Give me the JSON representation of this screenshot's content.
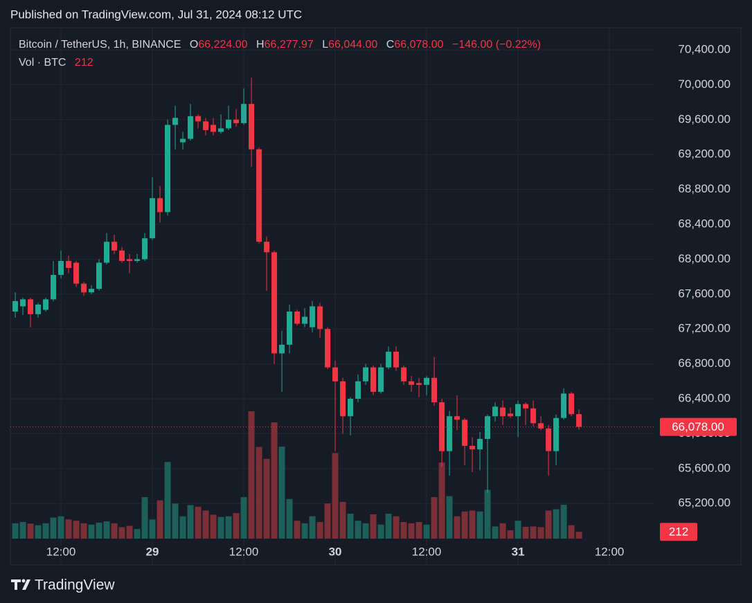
{
  "header": {
    "published": "Published on TradingView.com, Jul 31, 2024 08:12 UTC"
  },
  "footer": {
    "brand": "TradingView"
  },
  "chart_data": {
    "type": "candlestick",
    "symbol": "Bitcoin / TetherUS, 1h, BINANCE",
    "legend": [
      {
        "key": "O",
        "value": "66,224.00"
      },
      {
        "key": "H",
        "value": "66,277.97"
      },
      {
        "key": "L",
        "value": "66,044.00"
      },
      {
        "key": "C",
        "value": "66,078.00"
      }
    ],
    "change": "−146.00 (−0.22%)",
    "volume_legend": {
      "label": "Vol · BTC",
      "value": "212"
    },
    "up_color": "#22ab94",
    "down_color": "#f23645",
    "volume_up_color": "#1d5f59",
    "volume_down_color": "#7b2f36",
    "grid": true,
    "x": [
      6,
      7,
      8,
      9,
      10,
      11,
      12,
      13,
      14,
      15,
      16,
      17,
      18,
      19,
      20,
      21,
      22,
      23,
      24,
      25,
      26,
      27,
      28,
      29,
      30,
      31,
      32,
      33,
      34,
      35,
      36,
      37,
      38,
      39,
      40,
      41,
      42,
      43,
      44,
      45,
      46,
      47,
      48,
      49,
      50,
      51,
      52,
      53,
      54,
      55,
      56,
      57,
      58,
      59,
      60,
      61,
      62,
      63,
      64,
      65,
      66,
      67,
      68,
      69,
      70,
      71,
      72,
      73,
      74,
      75,
      76,
      77,
      78,
      79,
      80
    ],
    "open": [
      67400,
      67460,
      67540,
      67370,
      67420,
      67540,
      67820,
      67980,
      67960,
      67720,
      67620,
      67660,
      67960,
      68200,
      68100,
      68000,
      67980,
      68000,
      68240,
      68700,
      68540,
      69540,
      69340,
      69380,
      69640,
      69580,
      69540,
      69460,
      69500,
      69600,
      69560,
      69780,
      69260,
      68200,
      68080,
      66920,
      67020,
      67400,
      67260,
      67220,
      67460,
      67200,
      66760,
      66600,
      66200,
      66400,
      66600,
      66760,
      66480,
      66760,
      66940,
      66760,
      66600,
      66580,
      66560,
      66640,
      66360,
      65800,
      66200,
      66160,
      65860,
      65820,
      65940,
      66200,
      66300,
      66230,
      66200,
      66340,
      66290,
      66120,
      66060,
      65800,
      66180,
      66460,
      66224
    ],
    "high": [
      67620,
      67560,
      67560,
      67500,
      67560,
      67980,
      68100,
      68040,
      67980,
      67740,
      67700,
      68000,
      68300,
      68280,
      68140,
      68060,
      68060,
      68300,
      68940,
      68840,
      69600,
      69760,
      69460,
      69780,
      69660,
      69620,
      69620,
      69660,
      69760,
      69720,
      69960,
      70080,
      69280,
      68260,
      68100,
      67180,
      67480,
      67420,
      67440,
      67520,
      67500,
      67220,
      66840,
      66640,
      66420,
      66680,
      66800,
      66780,
      66800,
      67000,
      67000,
      66780,
      66660,
      66640,
      66660,
      66880,
      66400,
      66260,
      66440,
      66180,
      65960,
      66020,
      66220,
      66360,
      66380,
      66300,
      66380,
      66360,
      66380,
      66200,
      66100,
      66220,
      66520,
      66480,
      66277.97
    ],
    "low": [
      67330,
      67360,
      67220,
      67330,
      67400,
      67520,
      67780,
      67840,
      67680,
      67580,
      67600,
      67640,
      67940,
      68060,
      67960,
      67840,
      67960,
      67980,
      68220,
      68420,
      68500,
      69260,
      69260,
      69360,
      69500,
      69420,
      69420,
      69440,
      69480,
      69520,
      69540,
      69060,
      68180,
      67640,
      66800,
      66480,
      66920,
      67240,
      67220,
      67160,
      67100,
      66740,
      65800,
      66000,
      65980,
      66360,
      66560,
      66440,
      66460,
      66740,
      66720,
      66560,
      66480,
      66420,
      66440,
      66320,
      65620,
      65520,
      66040,
      65640,
      65560,
      65580,
      65320,
      66140,
      66100,
      66180,
      65960,
      66100,
      66080,
      66040,
      65520,
      65640,
      66160,
      66200,
      66044
    ],
    "close": [
      67520,
      67540,
      67370,
      67480,
      67540,
      67820,
      67980,
      67900,
      67720,
      67620,
      67660,
      67960,
      68200,
      68100,
      67980,
      67980,
      68000,
      68240,
      68700,
      68540,
      69540,
      69620,
      69380,
      69640,
      69580,
      69480,
      69460,
      69500,
      69600,
      69560,
      69780,
      69260,
      68200,
      68080,
      66920,
      67020,
      67400,
      67260,
      67340,
      67460,
      67200,
      66760,
      66600,
      66200,
      66400,
      66600,
      66760,
      66480,
      66760,
      66940,
      66760,
      66600,
      66560,
      66560,
      66640,
      66360,
      65800,
      66200,
      66160,
      65860,
      65820,
      65940,
      66200,
      66310,
      66200,
      66200,
      66340,
      66290,
      66120,
      66060,
      65800,
      66180,
      66460,
      66224,
      66078
    ],
    "volume": [
      480,
      520,
      470,
      420,
      480,
      660,
      700,
      600,
      560,
      480,
      440,
      500,
      540,
      480,
      360,
      400,
      300,
      1300,
      600,
      1200,
      2400,
      1100,
      700,
      1050,
      1000,
      880,
      750,
      680,
      700,
      800,
      1300,
      3990,
      2870,
      2500,
      3640,
      2880,
      1240,
      560,
      480,
      700,
      520,
      1100,
      2680,
      1150,
      780,
      560,
      480,
      760,
      440,
      780,
      700,
      520,
      480,
      520,
      440,
      1300,
      2380,
      1330,
      700,
      850,
      880,
      850,
      1530,
      380,
      480,
      260,
      560,
      370,
      380,
      360,
      880,
      920,
      1060,
      420,
      212
    ],
    "xlim": [
      5.36,
      89.9
    ],
    "xticks": [
      {
        "value": 12,
        "label": "12:00"
      },
      {
        "value": 24,
        "label": "29"
      },
      {
        "value": 36,
        "label": "12:00"
      },
      {
        "value": 48,
        "label": "30"
      },
      {
        "value": 60,
        "label": "12:00"
      },
      {
        "value": 72,
        "label": "31"
      },
      {
        "value": 84,
        "label": "12:00"
      }
    ],
    "ylim": [
      64797,
      70654
    ],
    "yticks": [
      {
        "value": 65200,
        "label": "65,200.00"
      },
      {
        "value": 65600,
        "label": "65,600.00"
      },
      {
        "value": 66000,
        "label": "66,000.00"
      },
      {
        "value": 66400,
        "label": "66,400.00"
      },
      {
        "value": 66800,
        "label": "66,800.00"
      },
      {
        "value": 67200,
        "label": "67,200.00"
      },
      {
        "value": 67600,
        "label": "67,600.00"
      },
      {
        "value": 68000,
        "label": "68,000.00"
      },
      {
        "value": 68400,
        "label": "68,400.00"
      },
      {
        "value": 68800,
        "label": "68,800.00"
      },
      {
        "value": 69200,
        "label": "69,200.00"
      },
      {
        "value": 69600,
        "label": "69,600.00"
      },
      {
        "value": 70000,
        "label": "70,000.00"
      },
      {
        "value": 70400,
        "label": "70,400.00"
      }
    ],
    "y2lim": [
      0,
      16000
    ],
    "last_price": {
      "value": 66078,
      "label": "66,078.00"
    },
    "last_volume": {
      "value": 212,
      "label": "212"
    }
  }
}
